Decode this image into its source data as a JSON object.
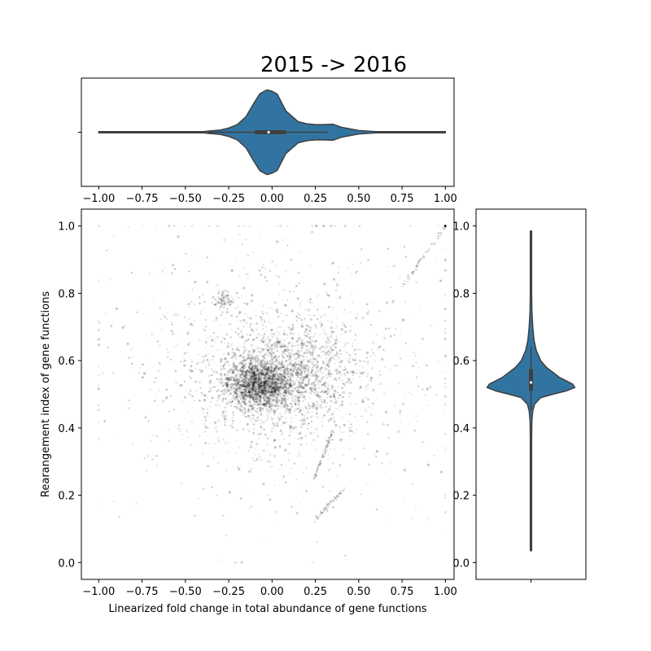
{
  "chart_data": [
    {
      "id": "top-violin",
      "type": "violin",
      "orientation": "horizontal",
      "title": "2015 -> 2016",
      "xlim": [
        -1.1,
        1.05
      ],
      "xticks": [
        -1.0,
        -0.75,
        -0.5,
        -0.25,
        0.0,
        0.25,
        0.5,
        0.75,
        1.0
      ],
      "xtick_labels": [
        "−1.00",
        "−0.75",
        "−0.50",
        "−0.25",
        "0.00",
        "0.25",
        "0.50",
        "0.75",
        "1.00"
      ],
      "ytick_labels": [
        ""
      ],
      "color": "#3274a1",
      "edge_color": "#3f3f3f",
      "stats": {
        "min": -1.0,
        "q1": -0.1,
        "median": -0.02,
        "q3": 0.08,
        "max": 1.0,
        "whisker_low": -0.37,
        "whisker_high": 0.32
      },
      "density_profile": [
        [
          -1.0,
          0.0
        ],
        [
          -0.6,
          0.0
        ],
        [
          -0.4,
          0.01
        ],
        [
          -0.3,
          0.05
        ],
        [
          -0.25,
          0.1
        ],
        [
          -0.2,
          0.18
        ],
        [
          -0.15,
          0.37
        ],
        [
          -0.1,
          0.72
        ],
        [
          -0.07,
          0.91
        ],
        [
          -0.03,
          1.0
        ],
        [
          0.0,
          0.97
        ],
        [
          0.03,
          0.9
        ],
        [
          0.08,
          0.5
        ],
        [
          0.15,
          0.25
        ],
        [
          0.2,
          0.2
        ],
        [
          0.25,
          0.18
        ],
        [
          0.3,
          0.18
        ],
        [
          0.35,
          0.19
        ],
        [
          0.4,
          0.12
        ],
        [
          0.45,
          0.08
        ],
        [
          0.5,
          0.04
        ],
        [
          0.6,
          0.01
        ],
        [
          0.7,
          0.0
        ],
        [
          1.0,
          0.0
        ]
      ]
    },
    {
      "id": "scatter",
      "type": "scatter",
      "xlabel": "Linearized fold change in total abundance of gene functions",
      "ylabel": "Rearangement index of gene functions",
      "xlim": [
        -1.1,
        1.05
      ],
      "ylim": [
        -0.05,
        1.05
      ],
      "xticks": [
        -1.0,
        -0.75,
        -0.5,
        -0.25,
        0.0,
        0.25,
        0.5,
        0.75,
        1.0
      ],
      "xtick_labels": [
        "−1.00",
        "−0.75",
        "−0.50",
        "−0.25",
        "0.00",
        "0.25",
        "0.50",
        "0.75",
        "1.00"
      ],
      "yticks": [
        0.0,
        0.2,
        0.4,
        0.6,
        0.8,
        1.0
      ],
      "ytick_labels": [
        "0.0",
        "0.2",
        "0.4",
        "0.6",
        "0.8",
        "1.0"
      ],
      "grid": false,
      "marker_color": "#000000",
      "clusters": [
        {
          "center": [
            -0.08,
            0.53
          ],
          "spread": [
            0.09,
            0.035
          ],
          "count": 1800
        },
        {
          "center": [
            0.1,
            0.56
          ],
          "spread": [
            0.2,
            0.07
          ],
          "count": 1400
        },
        {
          "center": [
            0.0,
            0.55
          ],
          "spread": [
            0.35,
            0.14
          ],
          "count": 900
        },
        {
          "center": [
            -0.28,
            0.78
          ],
          "spread": [
            0.025,
            0.012
          ],
          "count": 90
        },
        {
          "center": [
            0.0,
            0.6
          ],
          "spread": [
            0.6,
            0.25
          ],
          "count": 500
        }
      ],
      "streaks": [
        {
          "from": [
            0.24,
            0.25
          ],
          "to": [
            0.35,
            0.39
          ],
          "count": 90
        },
        {
          "from": [
            0.25,
            0.13
          ],
          "to": [
            0.42,
            0.22
          ],
          "count": 70
        },
        {
          "from": [
            0.75,
            0.82
          ],
          "to": [
            1.0,
            1.0
          ],
          "count": 70
        }
      ],
      "highlight_points": [
        [
          1.0,
          1.0
        ]
      ]
    },
    {
      "id": "right-violin",
      "type": "violin",
      "orientation": "vertical",
      "ylim": [
        -0.05,
        1.05
      ],
      "yticks": [
        0.0,
        0.2,
        0.4,
        0.6,
        0.8,
        1.0
      ],
      "ytick_labels": [
        "0.0",
        "0.2",
        "0.4",
        "0.6",
        "0.8",
        "1.0"
      ],
      "xtick_labels": [
        ""
      ],
      "color": "#3274a1",
      "edge_color": "#3f3f3f",
      "stats": {
        "min": 0.035,
        "q1": 0.51,
        "median": 0.535,
        "q3": 0.575,
        "max": 0.985,
        "whisker_low": 0.45,
        "whisker_high": 0.64
      },
      "density_profile": [
        [
          0.035,
          0.0
        ],
        [
          0.3,
          0.0
        ],
        [
          0.37,
          0.01
        ],
        [
          0.42,
          0.02
        ],
        [
          0.45,
          0.04
        ],
        [
          0.47,
          0.08
        ],
        [
          0.49,
          0.22
        ],
        [
          0.5,
          0.5
        ],
        [
          0.51,
          0.8
        ],
        [
          0.52,
          1.0
        ],
        [
          0.53,
          0.95
        ],
        [
          0.55,
          0.65
        ],
        [
          0.58,
          0.35
        ],
        [
          0.6,
          0.22
        ],
        [
          0.63,
          0.12
        ],
        [
          0.66,
          0.07
        ],
        [
          0.7,
          0.04
        ],
        [
          0.75,
          0.02
        ],
        [
          0.8,
          0.01
        ],
        [
          0.9,
          0.0
        ],
        [
          0.985,
          0.0
        ]
      ]
    }
  ]
}
